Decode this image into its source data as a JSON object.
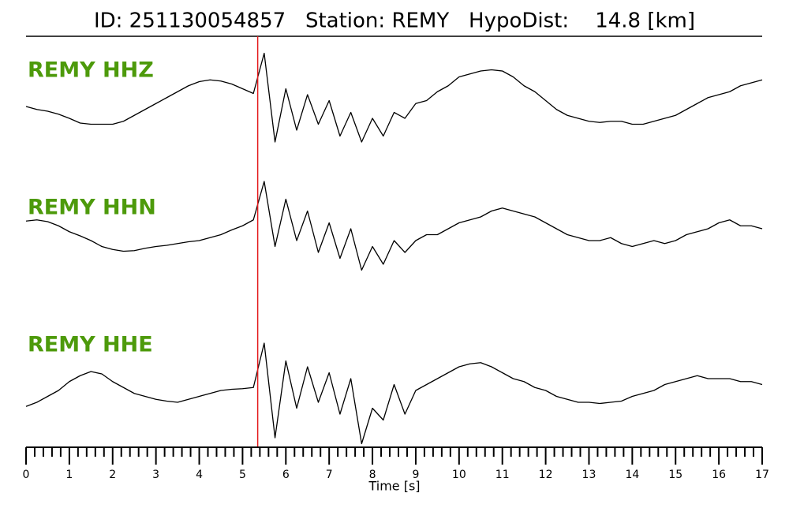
{
  "chart_data": {
    "type": "line",
    "title": "ID: 251130054857   Station: REMY   HypoDist:    14.8 [km]",
    "xlabel": "Time [s]",
    "x": [
      0,
      0.25,
      0.5,
      0.75,
      1,
      1.25,
      1.5,
      1.75,
      2,
      2.25,
      2.5,
      2.75,
      3,
      3.25,
      3.5,
      3.75,
      4,
      4.25,
      4.5,
      4.75,
      5,
      5.25,
      5.5,
      5.75,
      6,
      6.25,
      6.5,
      6.75,
      7,
      7.25,
      7.5,
      7.75,
      8,
      8.25,
      8.5,
      8.75,
      9,
      9.25,
      9.5,
      9.75,
      10,
      10.25,
      10.5,
      10.75,
      11,
      11.25,
      11.5,
      11.75,
      12,
      12.25,
      12.5,
      12.75,
      13,
      13.25,
      13.5,
      13.75,
      14,
      14.25,
      14.5,
      14.75,
      15,
      15.25,
      15.5,
      15.75,
      16,
      16.25,
      16.5,
      16.75,
      17
    ],
    "series": [
      {
        "name": "REMY HHZ",
        "color": "#000000",
        "label_color": "#4d9a0b",
        "values": [
          0,
          -0.05,
          -0.08,
          -0.13,
          -0.2,
          -0.28,
          -0.3,
          -0.3,
          -0.3,
          -0.25,
          -0.15,
          -0.05,
          0.05,
          0.15,
          0.25,
          0.35,
          0.42,
          0.45,
          0.43,
          0.38,
          0.3,
          0.22,
          0.9,
          -0.6,
          0.3,
          -0.4,
          0.2,
          -0.3,
          0.1,
          -0.5,
          -0.1,
          -0.6,
          -0.2,
          -0.5,
          -0.1,
          -0.2,
          0.05,
          0.1,
          0.25,
          0.35,
          0.5,
          0.55,
          0.6,
          0.62,
          0.6,
          0.5,
          0.35,
          0.25,
          0.1,
          -0.05,
          -0.15,
          -0.2,
          -0.25,
          -0.27,
          -0.25,
          -0.25,
          -0.3,
          -0.3,
          -0.25,
          -0.2,
          -0.15,
          -0.05,
          0.05,
          0.15,
          0.2,
          0.25,
          0.35,
          0.4,
          0.45
        ]
      },
      {
        "name": "REMY HHN",
        "color": "#000000",
        "label_color": "#4d9a0b",
        "values": [
          0.13,
          0.15,
          0.12,
          0.05,
          -0.05,
          -0.12,
          -0.2,
          -0.3,
          -0.35,
          -0.38,
          -0.37,
          -0.33,
          -0.3,
          -0.28,
          -0.25,
          -0.22,
          -0.2,
          -0.15,
          -0.1,
          -0.02,
          0.05,
          0.15,
          0.8,
          -0.3,
          0.5,
          -0.2,
          0.3,
          -0.4,
          0.1,
          -0.5,
          0,
          -0.7,
          -0.3,
          -0.6,
          -0.2,
          -0.4,
          -0.2,
          -0.1,
          -0.1,
          0,
          0.1,
          0.15,
          0.2,
          0.3,
          0.35,
          0.3,
          0.25,
          0.2,
          0.1,
          0,
          -0.1,
          -0.15,
          -0.2,
          -0.2,
          -0.15,
          -0.25,
          -0.3,
          -0.25,
          -0.2,
          -0.25,
          -0.2,
          -0.1,
          -0.05,
          0,
          0.1,
          0.15,
          0.05,
          0.05,
          0
        ]
      },
      {
        "name": "REMY HHE",
        "color": "#000000",
        "label_color": "#4d9a0b",
        "values": [
          -0.27,
          -0.2,
          -0.1,
          0,
          0.15,
          0.25,
          0.32,
          0.28,
          0.15,
          0.05,
          -0.05,
          -0.1,
          -0.15,
          -0.18,
          -0.2,
          -0.15,
          -0.1,
          -0.05,
          0,
          0.02,
          0.03,
          0.05,
          0.8,
          -0.8,
          0.5,
          -0.3,
          0.4,
          -0.2,
          0.3,
          -0.4,
          0.2,
          -0.9,
          -0.3,
          -0.5,
          0.1,
          -0.4,
          0,
          0.1,
          0.2,
          0.3,
          0.4,
          0.45,
          0.47,
          0.4,
          0.3,
          0.2,
          0.15,
          0.05,
          0,
          -0.1,
          -0.15,
          -0.2,
          -0.2,
          -0.22,
          -0.2,
          -0.18,
          -0.1,
          -0.05,
          0,
          0.1,
          0.15,
          0.2,
          0.25,
          0.2,
          0.2,
          0.2,
          0.15,
          0.15,
          0.1
        ]
      }
    ],
    "xlim": [
      0,
      17
    ],
    "ylim": [
      -1,
      1
    ],
    "xticks": [
      0,
      1,
      2,
      3,
      4,
      5,
      6,
      7,
      8,
      9,
      10,
      11,
      12,
      13,
      14,
      15,
      16,
      17
    ],
    "xminorticks": [
      0.2,
      0.4,
      0.6,
      0.8,
      1.2,
      1.4,
      1.6,
      1.8,
      2.2,
      2.4,
      2.6,
      2.8,
      3.2,
      3.4,
      3.6,
      3.8,
      4.2,
      4.4,
      4.6,
      4.8,
      5.2,
      5.4,
      5.6,
      5.8,
      6.2,
      6.4,
      6.6,
      6.8,
      7.2,
      7.4,
      7.6,
      7.8,
      8.2,
      8.4,
      8.6,
      8.8,
      9.2,
      9.4,
      9.6,
      9.8,
      10.2,
      10.4,
      10.6,
      10.8,
      11.2,
      11.4,
      11.6,
      11.8,
      12.2,
      12.4,
      12.6,
      12.8,
      13.2,
      13.4,
      13.6,
      13.8,
      14.2,
      14.4,
      14.6,
      14.8,
      15.2,
      15.4,
      15.6,
      15.8,
      16.2,
      16.4,
      16.6,
      16.8
    ],
    "vline": 5.35,
    "vline_color": "#e41a1c"
  }
}
